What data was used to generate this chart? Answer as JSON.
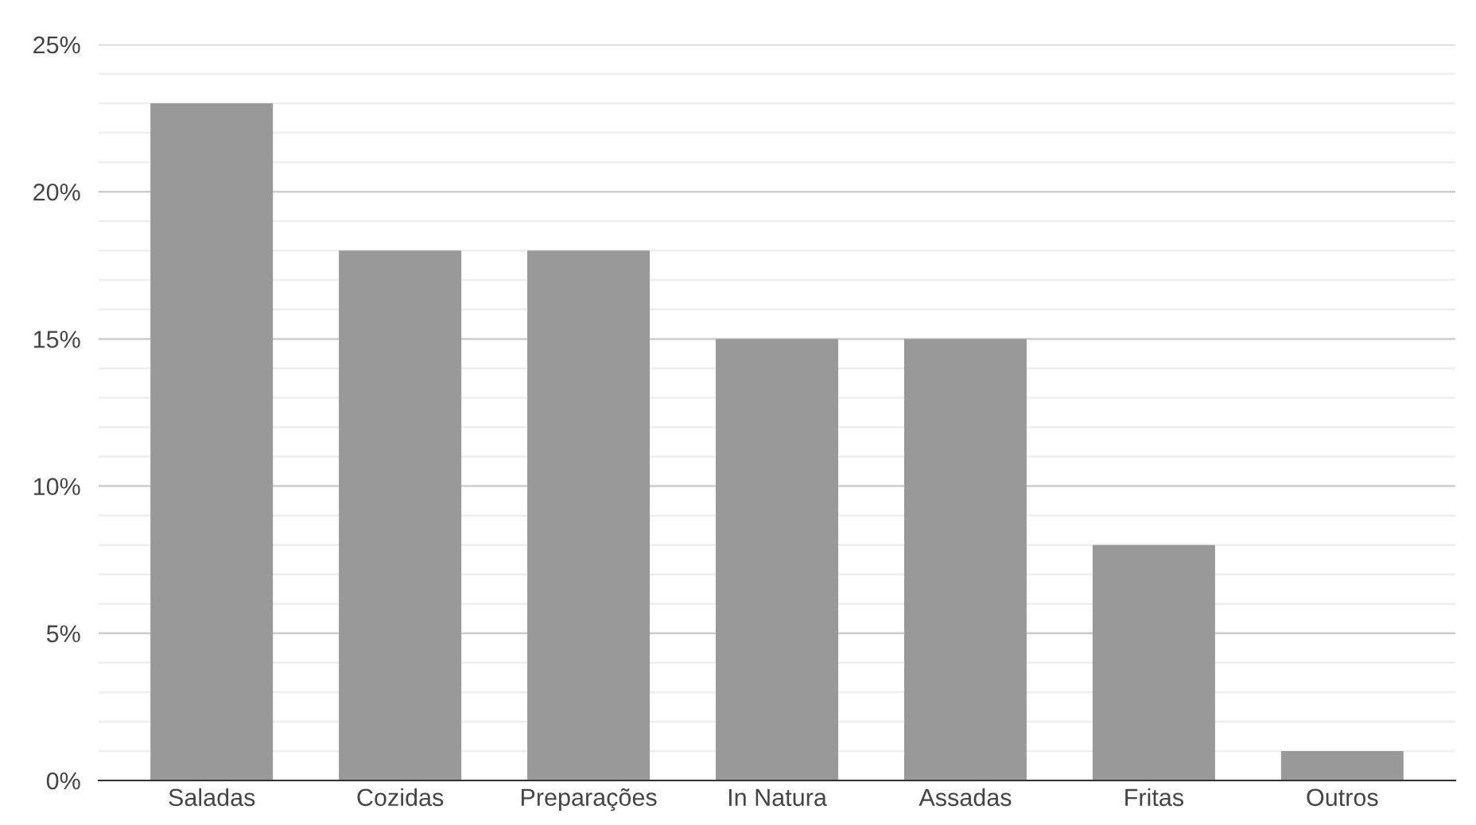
{
  "chart_data": {
    "type": "bar",
    "categories": [
      "Saladas",
      "Cozidas",
      "Preparações",
      "In Natura",
      "Assadas",
      "Fritas",
      "Outros"
    ],
    "values": [
      23,
      18,
      18,
      15,
      15,
      8,
      1
    ],
    "color": "#999999",
    "ylim": [
      0,
      25
    ],
    "yticks": [
      {
        "value": 0,
        "label": "0%"
      },
      {
        "value": 1,
        "label": null
      },
      {
        "value": 2,
        "label": null
      },
      {
        "value": 3,
        "label": null
      },
      {
        "value": 4,
        "label": null
      },
      {
        "value": 5,
        "label": "5%"
      },
      {
        "value": 6,
        "label": null
      },
      {
        "value": 7,
        "label": null
      },
      {
        "value": 8,
        "label": null
      },
      {
        "value": 9,
        "label": null
      },
      {
        "value": 10,
        "label": "10%"
      },
      {
        "value": 11,
        "label": null
      },
      {
        "value": 12,
        "label": null
      },
      {
        "value": 13,
        "label": null
      },
      {
        "value": 14,
        "label": null
      },
      {
        "value": 15,
        "label": "15%"
      },
      {
        "value": 16,
        "label": null
      },
      {
        "value": 17,
        "label": null
      },
      {
        "value": 18,
        "label": null
      },
      {
        "value": 19,
        "label": null
      },
      {
        "value": 20,
        "label": "20%"
      },
      {
        "value": 21,
        "label": null
      },
      {
        "value": 22,
        "label": null
      },
      {
        "value": 23,
        "label": null
      },
      {
        "value": 24,
        "label": null
      },
      {
        "value": 25,
        "label": "25%"
      }
    ],
    "grid": "y"
  }
}
